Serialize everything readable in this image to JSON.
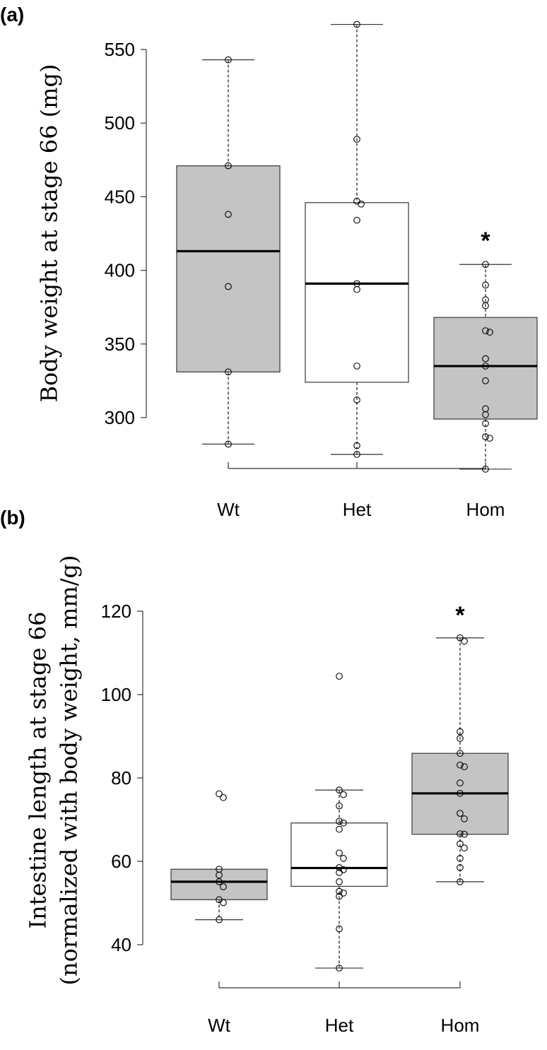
{
  "chart_data": [
    {
      "type": "box",
      "panel_label": "(a)",
      "ylabel": [
        "Body weight at stage 66 (mg)"
      ],
      "xlabel": "",
      "yticks": [
        300,
        350,
        400,
        450,
        500,
        550
      ],
      "categories": [
        "Wt",
        "Het",
        "Hom"
      ],
      "fills": [
        "#c4c4c4",
        "#ffffff",
        "#c4c4c4"
      ],
      "significance": [
        "",
        "",
        "*"
      ],
      "boxes": [
        {
          "whisker_low": 282,
          "q1": 331,
          "median": 413,
          "q3": 471,
          "whisker_high": 543,
          "points": [
            543,
            471,
            438,
            389,
            331,
            282
          ]
        },
        {
          "whisker_low": 275,
          "q1": 324,
          "median": 391,
          "q3": 446,
          "whisker_high": 567,
          "points": [
            567,
            489,
            447,
            445,
            434,
            391,
            387,
            335,
            312,
            281,
            275
          ]
        },
        {
          "whisker_low": 265,
          "q1": 299,
          "median": 335,
          "q3": 368,
          "whisker_high": 404,
          "points": [
            404,
            390,
            380,
            376,
            359,
            358,
            340,
            335,
            325,
            306,
            302,
            296,
            287,
            286,
            265
          ]
        }
      ]
    },
    {
      "type": "box",
      "panel_label": "(b)",
      "ylabel": [
        "Intestine length at stage 66",
        "(normalized with body weight, mm/g)"
      ],
      "xlabel": "",
      "yticks": [
        40,
        60,
        80,
        100,
        120
      ],
      "categories": [
        "Wt",
        "Het",
        "Hom"
      ],
      "fills": [
        "#c4c4c4",
        "#ffffff",
        "#c4c4c4"
      ],
      "significance": [
        "",
        "",
        "*"
      ],
      "boxes": [
        {
          "whisker_low": 46.0,
          "q1": 50.8,
          "median": 55.1,
          "q3": 58.1,
          "whisker_high": 58.1,
          "points": [
            76.2,
            75.3,
            58.1,
            56.7,
            55.1,
            53.9,
            50.8,
            50.1,
            46.0
          ]
        },
        {
          "whisker_low": 34.4,
          "q1": 54.0,
          "median": 58.4,
          "q3": 69.2,
          "whisker_high": 77.1,
          "points": [
            104.4,
            77.1,
            76.0,
            73.3,
            69.6,
            69.2,
            67.7,
            62.0,
            60.7,
            58.5,
            58.0,
            57.3,
            55.1,
            52.8,
            52.4,
            51.6,
            43.8,
            34.4
          ]
        },
        {
          "whisker_low": 55.1,
          "q1": 66.5,
          "median": 76.3,
          "q3": 85.9,
          "whisker_high": 113.6,
          "points": [
            113.6,
            112.8,
            91.1,
            89.5,
            85.9,
            83.1,
            82.7,
            78.8,
            76.3,
            71.5,
            70.2,
            66.6,
            66.5,
            64.2,
            63.2,
            60.7,
            58.5,
            55.1
          ]
        }
      ]
    }
  ]
}
